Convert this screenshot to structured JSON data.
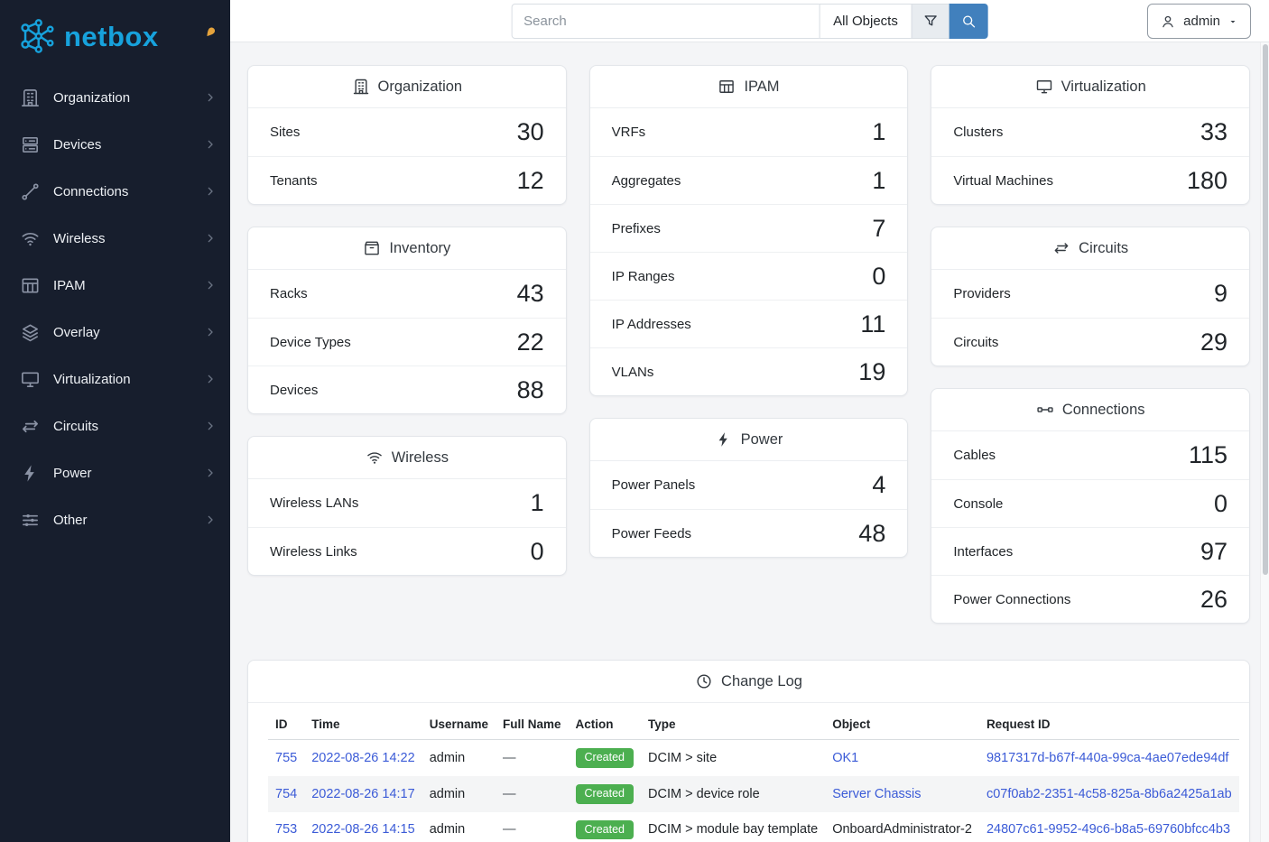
{
  "brand": {
    "name": "netbox"
  },
  "topbar": {
    "search_placeholder": "Search",
    "scope_button": "All Objects",
    "user_label": "admin",
    "icons": {
      "filter": "filter-icon",
      "search": "search-icon",
      "user": "person-icon",
      "caret": "caret-down-icon"
    }
  },
  "sidebar": {
    "pin_icon": "pin-icon",
    "items": [
      {
        "label": "Organization",
        "icon": "building-icon"
      },
      {
        "label": "Devices",
        "icon": "rack-icon"
      },
      {
        "label": "Connections",
        "icon": "plug-icon"
      },
      {
        "label": "Wireless",
        "icon": "wifi-icon"
      },
      {
        "label": "IPAM",
        "icon": "ip-grid-icon"
      },
      {
        "label": "Overlay",
        "icon": "layers-icon"
      },
      {
        "label": "Virtualization",
        "icon": "monitor-icon"
      },
      {
        "label": "Circuits",
        "icon": "transit-icon"
      },
      {
        "label": "Power",
        "icon": "lightning-icon"
      },
      {
        "label": "Other",
        "icon": "sliders-icon"
      }
    ]
  },
  "stats_columns": [
    [
      {
        "title": "Organization",
        "icon": "building-icon",
        "rows": [
          {
            "label": "Sites",
            "value": "30"
          },
          {
            "label": "Tenants",
            "value": "12"
          }
        ]
      },
      {
        "title": "Inventory",
        "icon": "boxes-icon",
        "rows": [
          {
            "label": "Racks",
            "value": "43"
          },
          {
            "label": "Device Types",
            "value": "22"
          },
          {
            "label": "Devices",
            "value": "88"
          }
        ]
      },
      {
        "title": "Wireless",
        "icon": "wifi-icon",
        "rows": [
          {
            "label": "Wireless LANs",
            "value": "1"
          },
          {
            "label": "Wireless Links",
            "value": "0"
          }
        ]
      }
    ],
    [
      {
        "title": "IPAM",
        "icon": "ip-grid-icon",
        "rows": [
          {
            "label": "VRFs",
            "value": "1"
          },
          {
            "label": "Aggregates",
            "value": "1"
          },
          {
            "label": "Prefixes",
            "value": "7"
          },
          {
            "label": "IP Ranges",
            "value": "0"
          },
          {
            "label": "IP Addresses",
            "value": "11"
          },
          {
            "label": "VLANs",
            "value": "19"
          }
        ]
      },
      {
        "title": "Power",
        "icon": "lightning-icon",
        "rows": [
          {
            "label": "Power Panels",
            "value": "4"
          },
          {
            "label": "Power Feeds",
            "value": "48"
          }
        ]
      }
    ],
    [
      {
        "title": "Virtualization",
        "icon": "monitor-icon",
        "rows": [
          {
            "label": "Clusters",
            "value": "33"
          },
          {
            "label": "Virtual Machines",
            "value": "180"
          }
        ]
      },
      {
        "title": "Circuits",
        "icon": "transit-icon",
        "rows": [
          {
            "label": "Providers",
            "value": "9"
          },
          {
            "label": "Circuits",
            "value": "29"
          }
        ]
      },
      {
        "title": "Connections",
        "icon": "cable-icon",
        "rows": [
          {
            "label": "Cables",
            "value": "115"
          },
          {
            "label": "Console",
            "value": "0"
          },
          {
            "label": "Interfaces",
            "value": "97"
          },
          {
            "label": "Power Connections",
            "value": "26"
          }
        ]
      }
    ]
  ],
  "changelog": {
    "title": "Change Log",
    "icon": "history-icon",
    "columns": [
      "ID",
      "Time",
      "Username",
      "Full Name",
      "Action",
      "Type",
      "Object",
      "Request ID"
    ],
    "rows": [
      {
        "id": "755",
        "time": "2022-08-26 14:22",
        "username": "admin",
        "full_name": "—",
        "action": "Created",
        "type": "DCIM > site",
        "object": "OK1",
        "object_link": true,
        "request_id": "9817317d-b67f-440a-99ca-4ae07ede94df"
      },
      {
        "id": "754",
        "time": "2022-08-26 14:17",
        "username": "admin",
        "full_name": "—",
        "action": "Created",
        "type": "DCIM > device role",
        "object": "Server Chassis",
        "object_link": true,
        "request_id": "c07f0ab2-2351-4c58-825a-8b6a2425a1ab"
      },
      {
        "id": "753",
        "time": "2022-08-26 14:15",
        "username": "admin",
        "full_name": "—",
        "action": "Created",
        "type": "DCIM > module bay template",
        "object": "OnboardAdministrator-2",
        "object_link": false,
        "request_id": "24807c61-9952-49c6-b8a5-69760bfcc4b3"
      }
    ]
  },
  "colors": {
    "sidebar_bg": "#171e2d",
    "brand": "#17a2dc",
    "primary_button": "#4180bd",
    "link": "#3b5bd7",
    "badge_created": "#4caf50",
    "pin": "#e5a33c"
  }
}
